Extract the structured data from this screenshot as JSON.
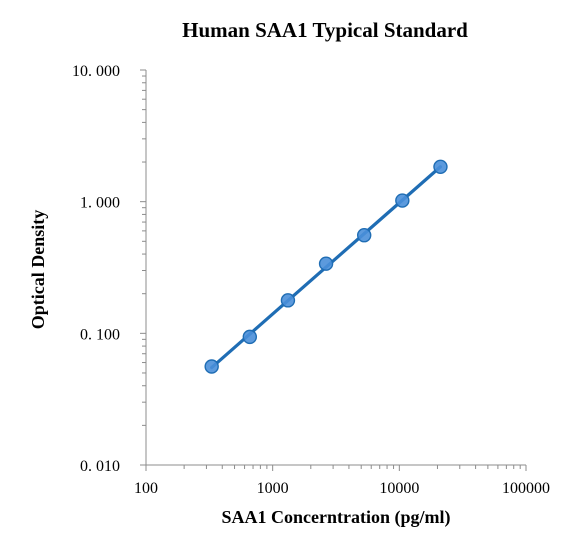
{
  "chart_data": {
    "type": "scatter",
    "title": "Human SAA1 Typical Standard",
    "xlabel": "SAA1 Concerntration (pg/ml)",
    "ylabel": "Optical Density",
    "x_scale": "log",
    "y_scale": "log",
    "xlim": [
      100,
      100000
    ],
    "ylim": [
      0.01,
      10
    ],
    "x_ticks": [
      "100",
      "1000",
      "10000",
      "100000"
    ],
    "y_ticks": [
      "0. 010",
      "0. 100",
      "1. 000",
      "10. 000"
    ],
    "grid": false,
    "legend": "none",
    "series": [
      {
        "x": [
          330,
          660,
          1320,
          2640,
          5280,
          10560,
          21120
        ],
        "y": [
          0.056,
          0.094,
          0.178,
          0.338,
          0.556,
          1.02,
          1.84
        ],
        "color": "#1F6DB4",
        "marker_color": "#4A8FD9",
        "trendline": true
      }
    ]
  }
}
